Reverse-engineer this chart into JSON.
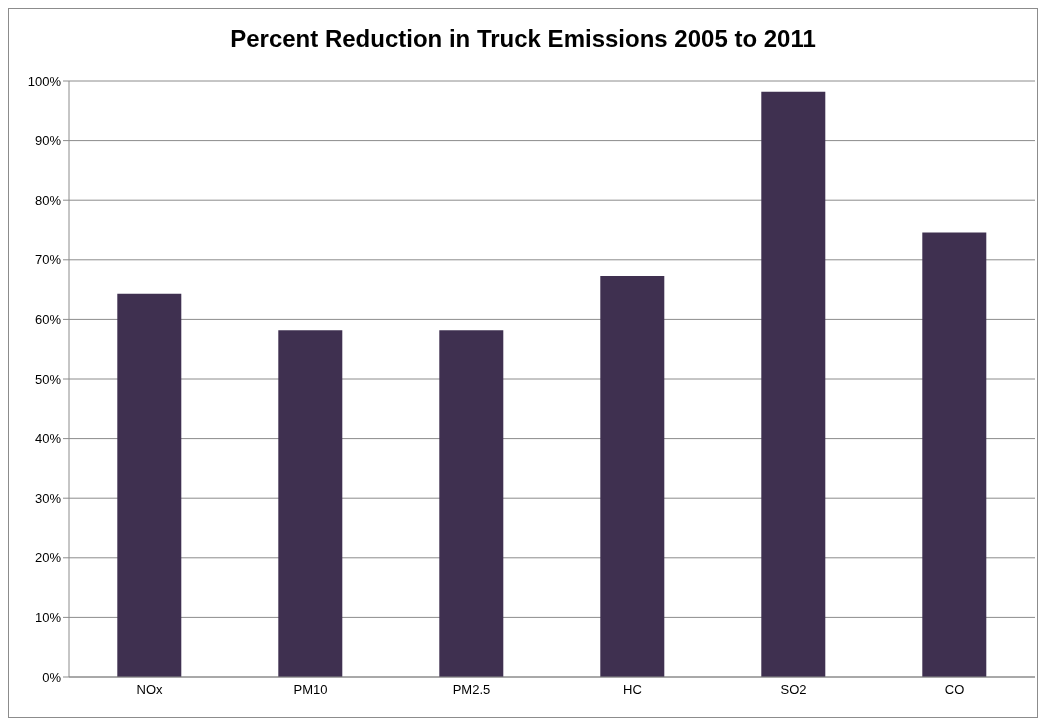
{
  "chart_data": {
    "type": "bar",
    "title": "Percent Reduction in Truck Emissions 2005 to 2011",
    "categories": [
      "NOx",
      "PM10",
      "PM2.5",
      "HC",
      "SO2",
      "CO"
    ],
    "values": [
      64.3,
      58.2,
      58.2,
      67.3,
      98.2,
      74.6
    ],
    "color": "#3f3050",
    "ylim": [
      0,
      100
    ],
    "yticks": [
      {
        "value": 0,
        "label": "0%"
      },
      {
        "value": 10,
        "label": "10%"
      },
      {
        "value": 20,
        "label": "20%"
      },
      {
        "value": 30,
        "label": "30%"
      },
      {
        "value": 40,
        "label": "40%"
      },
      {
        "value": 50,
        "label": "50%"
      },
      {
        "value": 60,
        "label": "60%"
      },
      {
        "value": 70,
        "label": "70%"
      },
      {
        "value": 80,
        "label": "80%"
      },
      {
        "value": 90,
        "label": "90%"
      },
      {
        "value": 100,
        "label": "100%"
      }
    ],
    "grid": "y"
  }
}
